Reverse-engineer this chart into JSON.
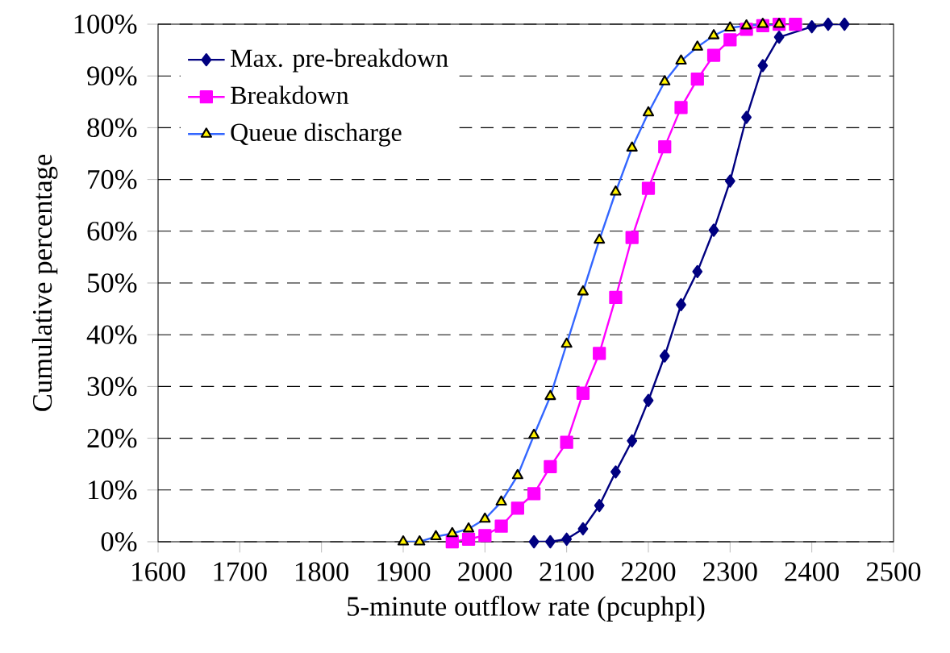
{
  "chart_data": {
    "type": "line",
    "xlabel": "5-minute outflow rate (pcuphpl)",
    "ylabel": "Cumulative percentage",
    "xlim": [
      1600,
      2500
    ],
    "xticks": [
      1600,
      1700,
      1800,
      1900,
      2000,
      2100,
      2200,
      2300,
      2400,
      2500
    ],
    "ylim": [
      0,
      100
    ],
    "yticks": [
      {
        "value": 0,
        "label": "0%"
      },
      {
        "value": 10,
        "label": "10%"
      },
      {
        "value": 20,
        "label": "20%"
      },
      {
        "value": 30,
        "label": "30%"
      },
      {
        "value": 40,
        "label": "40%"
      },
      {
        "value": 50,
        "label": "50%"
      },
      {
        "value": 60,
        "label": "60%"
      },
      {
        "value": 70,
        "label": "70%"
      },
      {
        "value": 80,
        "label": "80%"
      },
      {
        "value": 90,
        "label": "90%"
      },
      {
        "value": 100,
        "label": "100%"
      }
    ],
    "grid": "y",
    "legend": "top left",
    "line_style": "solid",
    "series": [
      {
        "name": "Max. pre-breakdown",
        "color": "#000080",
        "marker": "diamond",
        "x": [
          2060,
          2080,
          2100,
          2120,
          2140,
          2160,
          2180,
          2200,
          2220,
          2240,
          2260,
          2280,
          2300,
          2320,
          2340,
          2360,
          2380,
          2400,
          2420,
          2440
        ],
        "values": [
          0,
          0,
          0.5,
          2.5,
          7,
          13.5,
          19.5,
          27.3,
          35.9,
          45.8,
          52.2,
          60.2,
          69.7,
          82,
          92,
          97.5,
          null,
          99.5,
          100,
          100
        ]
      },
      {
        "name": "Breakdown",
        "color": "#ff00ff",
        "marker": "square",
        "x": [
          1960,
          1980,
          2000,
          2020,
          2040,
          2060,
          2080,
          2100,
          2120,
          2140,
          2160,
          2180,
          2200,
          2220,
          2240,
          2260,
          2280,
          2300,
          2320,
          2340,
          2360,
          2380
        ],
        "values": [
          0,
          0.5,
          1.2,
          3,
          6.5,
          9.3,
          14.5,
          19.2,
          28.7,
          36.4,
          47.2,
          58.8,
          68.3,
          76.3,
          83.9,
          89.4,
          94,
          97,
          99,
          99.7,
          100,
          100
        ]
      },
      {
        "name": "Queue discharge",
        "color": "#3366ff",
        "marker": "triangle",
        "x": [
          1900,
          1920,
          1940,
          1960,
          1980,
          2000,
          2020,
          2040,
          2060,
          2080,
          2100,
          2120,
          2140,
          2160,
          2180,
          2200,
          2220,
          2240,
          2260,
          2280,
          2300,
          2320,
          2340,
          2360
        ],
        "values": [
          0,
          0,
          1,
          1.6,
          2.5,
          4.4,
          7.7,
          12.8,
          20.6,
          28.1,
          38.2,
          48.3,
          58.3,
          67.6,
          76.1,
          82.9,
          88.9,
          92.9,
          95.6,
          97.8,
          99.3,
          99.7,
          100,
          100
        ]
      }
    ]
  }
}
